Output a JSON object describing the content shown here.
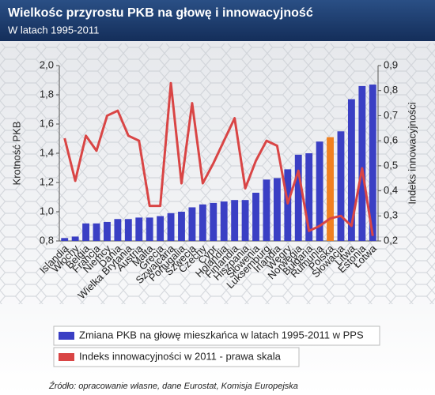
{
  "chart_data": {
    "type": "bar_line",
    "title": "Wielkośc przyrostu PKB na głowę i innowacyjność",
    "subtitle": "W latach 1995-2011",
    "y_label": "Krotność PKB",
    "y2_label": "Indeks innowacyjności",
    "source": "Źródło: opracowanie własne, dane Eurostat, Komisja Europejska",
    "categories": [
      "Islandia",
      "Włochy",
      "Belgia",
      "Francja",
      "Niemcy",
      "Dania",
      "Wielka Brytania",
      "Austria",
      "Malta",
      "Grecja",
      "Szwajcaria",
      "Portugalia",
      "Szwecja",
      "Czechy",
      "Cypr",
      "Holandia",
      "Finlandia",
      "Hiszpania",
      "Słowenia",
      "Luksemburg",
      "Irlandia",
      "Węgry",
      "Norwegia",
      "Bułgaria",
      "Rumunia",
      "Polska",
      "Słowacja",
      "Litwa",
      "Estonia",
      "Łotwa"
    ],
    "series": [
      {
        "name": "Zmiana PKB na głowę mieszkańca w latach 1995-2011 w PPS",
        "type": "bar",
        "color": "#3a3fc4",
        "colors": [
          "#3a3fc4",
          "#3a3fc4",
          "#3a3fc4",
          "#3a3fc4",
          "#3a3fc4",
          "#3a3fc4",
          "#3a3fc4",
          "#3a3fc4",
          "#3a3fc4",
          "#3a3fc4",
          "#3a3fc4",
          "#3a3fc4",
          "#3a3fc4",
          "#3a3fc4",
          "#3a3fc4",
          "#3a3fc4",
          "#3a3fc4",
          "#3a3fc4",
          "#3a3fc4",
          "#3a3fc4",
          "#3a3fc4",
          "#3a3fc4",
          "#3a3fc4",
          "#3a3fc4",
          "#3a3fc4",
          "#f08020",
          "#3a3fc4",
          "#3a3fc4",
          "#3a3fc4",
          "#3a3fc4"
        ],
        "values": [
          0.82,
          0.83,
          0.92,
          0.92,
          0.93,
          0.95,
          0.95,
          0.96,
          0.96,
          0.97,
          0.99,
          1.0,
          1.03,
          1.05,
          1.06,
          1.07,
          1.08,
          1.08,
          1.13,
          1.22,
          1.23,
          1.29,
          1.39,
          1.4,
          1.48,
          1.51,
          1.55,
          1.77,
          1.86,
          1.87
        ]
      },
      {
        "name": "Indeks innowacyjności w 2011 - prawa skala",
        "type": "line",
        "axis": "y2",
        "color": "#d94545",
        "values": [
          0.61,
          0.44,
          0.62,
          0.56,
          0.7,
          0.72,
          0.62,
          0.6,
          0.34,
          0.34,
          0.83,
          0.43,
          0.75,
          0.43,
          0.51,
          0.6,
          0.69,
          0.41,
          0.52,
          0.6,
          0.58,
          0.35,
          0.48,
          0.24,
          0.26,
          0.29,
          0.3,
          0.26,
          0.49,
          0.22
        ]
      }
    ],
    "ylim": [
      0.8,
      2.0
    ],
    "yticks": [
      {
        "value": 0.8,
        "label": "0,8"
      },
      {
        "value": 1.0,
        "label": "1,0"
      },
      {
        "value": 1.2,
        "label": "1,2"
      },
      {
        "value": 1.4,
        "label": "1,4"
      },
      {
        "value": 1.6,
        "label": "1,6"
      },
      {
        "value": 1.8,
        "label": "1,8"
      },
      {
        "value": 2.0,
        "label": "2,0"
      }
    ],
    "y2lim": [
      0.2,
      0.9
    ],
    "y2ticks": [
      {
        "value": 0.2,
        "label": "0,2"
      },
      {
        "value": 0.3,
        "label": "0,3"
      },
      {
        "value": 0.4,
        "label": "0,4"
      },
      {
        "value": 0.5,
        "label": "0,5"
      },
      {
        "value": 0.6,
        "label": "0,6"
      },
      {
        "value": 0.7,
        "label": "0,7"
      },
      {
        "value": 0.8,
        "label": "0,8"
      },
      {
        "value": 0.9,
        "label": "0,9"
      }
    ]
  }
}
